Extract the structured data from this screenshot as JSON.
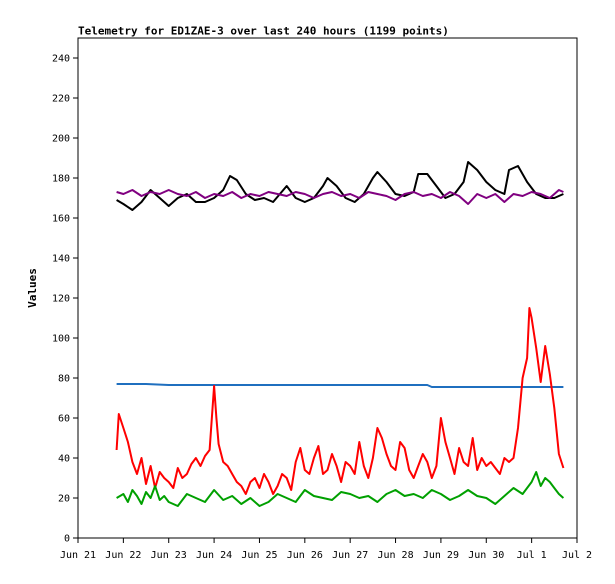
{
  "chart_data": {
    "type": "line",
    "title": "Telemetry for ED1ZAE-3 over last 240 hours (1199 points)",
    "xlabel": "",
    "ylabel": "Values",
    "ylim": [
      0,
      250
    ],
    "yticks": [
      0,
      20,
      40,
      60,
      80,
      100,
      120,
      140,
      160,
      180,
      200,
      220,
      240
    ],
    "xlim": [
      0,
      11
    ],
    "xticks": [
      {
        "x": 0,
        "label": "Jun 21"
      },
      {
        "x": 1,
        "label": "Jun 22"
      },
      {
        "x": 2,
        "label": "Jun 23"
      },
      {
        "x": 3,
        "label": "Jun 24"
      },
      {
        "x": 4,
        "label": "Jun 25"
      },
      {
        "x": 5,
        "label": "Jun 26"
      },
      {
        "x": 6,
        "label": "Jun 27"
      },
      {
        "x": 7,
        "label": "Jun 28"
      },
      {
        "x": 8,
        "label": "Jun 29"
      },
      {
        "x": 9,
        "label": "Jun 30"
      },
      {
        "x": 10,
        "label": "Jul 1"
      },
      {
        "x": 11,
        "label": "Jul 2"
      }
    ],
    "grid": false,
    "legend": "none",
    "series": [
      {
        "color": "#000000",
        "x": [
          0.85,
          1.0,
          1.2,
          1.4,
          1.6,
          1.8,
          2.0,
          2.2,
          2.4,
          2.6,
          2.8,
          3.0,
          3.2,
          3.35,
          3.5,
          3.7,
          3.9,
          4.1,
          4.3,
          4.45,
          4.6,
          4.8,
          5.0,
          5.2,
          5.4,
          5.5,
          5.7,
          5.9,
          6.1,
          6.3,
          6.5,
          6.6,
          6.8,
          7.0,
          7.2,
          7.4,
          7.5,
          7.7,
          7.9,
          8.1,
          8.3,
          8.5,
          8.6,
          8.8,
          9.0,
          9.2,
          9.4,
          9.5,
          9.7,
          9.9,
          10.1,
          10.3,
          10.5,
          10.7
        ],
        "y": [
          169,
          167,
          164,
          168,
          174,
          170,
          166,
          170,
          172,
          168,
          168,
          170,
          174,
          181,
          179,
          172,
          169,
          170,
          168,
          172,
          176,
          170,
          168,
          170,
          176,
          180,
          176,
          170,
          168,
          172,
          180,
          183,
          178,
          172,
          171,
          173,
          182,
          182,
          176,
          170,
          172,
          178,
          188,
          184,
          178,
          174,
          172,
          184,
          186,
          178,
          172,
          170,
          170,
          172
        ]
      },
      {
        "color": "#800080",
        "x": [
          0.85,
          1.0,
          1.2,
          1.4,
          1.6,
          1.8,
          2.0,
          2.2,
          2.4,
          2.6,
          2.8,
          3.0,
          3.2,
          3.4,
          3.6,
          3.8,
          4.0,
          4.2,
          4.4,
          4.6,
          4.8,
          5.0,
          5.2,
          5.4,
          5.6,
          5.8,
          6.0,
          6.2,
          6.4,
          6.6,
          6.8,
          7.0,
          7.2,
          7.4,
          7.6,
          7.8,
          8.0,
          8.2,
          8.4,
          8.6,
          8.8,
          9.0,
          9.2,
          9.4,
          9.6,
          9.8,
          10.0,
          10.2,
          10.4,
          10.6,
          10.7
        ],
        "y": [
          173,
          172,
          174,
          171,
          173,
          172,
          174,
          172,
          171,
          173,
          170,
          172,
          171,
          173,
          170,
          172,
          171,
          173,
          172,
          171,
          173,
          172,
          170,
          172,
          173,
          171,
          172,
          170,
          173,
          172,
          171,
          169,
          172,
          173,
          171,
          172,
          170,
          173,
          171,
          167,
          172,
          170,
          172,
          168,
          172,
          171,
          173,
          172,
          170,
          174,
          173
        ]
      },
      {
        "color": "#1f6fbf",
        "x": [
          0.85,
          1.5,
          2.0,
          3.0,
          4.0,
          5.0,
          6.0,
          7.0,
          7.7,
          7.8,
          8.5,
          9.0,
          9.5,
          10.0,
          10.7
        ],
        "y": [
          77,
          77,
          76.5,
          76.5,
          76.5,
          76.5,
          76.5,
          76.5,
          76.5,
          75.5,
          75.5,
          75.5,
          75.5,
          75.5,
          75.5
        ]
      },
      {
        "color": "#ff0000",
        "x": [
          0.85,
          0.9,
          1.0,
          1.1,
          1.2,
          1.3,
          1.4,
          1.5,
          1.6,
          1.7,
          1.8,
          1.9,
          2.0,
          2.1,
          2.2,
          2.3,
          2.4,
          2.5,
          2.6,
          2.7,
          2.8,
          2.9,
          3.0,
          3.05,
          3.1,
          3.2,
          3.3,
          3.4,
          3.5,
          3.6,
          3.7,
          3.8,
          3.9,
          4.0,
          4.1,
          4.2,
          4.3,
          4.4,
          4.5,
          4.6,
          4.7,
          4.8,
          4.9,
          5.0,
          5.1,
          5.2,
          5.3,
          5.4,
          5.5,
          5.6,
          5.7,
          5.8,
          5.9,
          6.0,
          6.1,
          6.2,
          6.3,
          6.4,
          6.5,
          6.6,
          6.7,
          6.8,
          6.9,
          7.0,
          7.1,
          7.2,
          7.3,
          7.4,
          7.5,
          7.6,
          7.7,
          7.8,
          7.9,
          8.0,
          8.1,
          8.2,
          8.3,
          8.4,
          8.5,
          8.6,
          8.7,
          8.8,
          8.9,
          9.0,
          9.1,
          9.2,
          9.3,
          9.4,
          9.5,
          9.6,
          9.7,
          9.8,
          9.9,
          9.95,
          10.0,
          10.1,
          10.2,
          10.3,
          10.4,
          10.5,
          10.6,
          10.7
        ],
        "y": [
          44,
          62,
          55,
          48,
          38,
          32,
          40,
          27,
          36,
          25,
          33,
          30,
          28,
          25,
          35,
          30,
          32,
          37,
          40,
          36,
          41,
          44,
          76,
          60,
          47,
          38,
          36,
          32,
          28,
          26,
          22,
          28,
          30,
          25,
          32,
          28,
          22,
          26,
          32,
          30,
          24,
          38,
          45,
          34,
          32,
          40,
          46,
          32,
          34,
          42,
          36,
          28,
          38,
          36,
          32,
          48,
          36,
          30,
          40,
          55,
          50,
          42,
          36,
          34,
          48,
          45,
          34,
          30,
          36,
          42,
          38,
          30,
          36,
          60,
          48,
          40,
          32,
          45,
          38,
          36,
          50,
          34,
          40,
          36,
          38,
          35,
          32,
          40,
          38,
          40,
          55,
          80,
          90,
          115,
          110,
          95,
          78,
          96,
          82,
          65,
          42,
          35
        ]
      },
      {
        "color": "#00a000",
        "x": [
          0.85,
          1.0,
          1.1,
          1.2,
          1.3,
          1.4,
          1.5,
          1.6,
          1.7,
          1.8,
          1.9,
          2.0,
          2.2,
          2.4,
          2.6,
          2.8,
          3.0,
          3.2,
          3.4,
          3.6,
          3.8,
          4.0,
          4.2,
          4.4,
          4.6,
          4.8,
          5.0,
          5.2,
          5.4,
          5.6,
          5.8,
          6.0,
          6.2,
          6.4,
          6.6,
          6.8,
          7.0,
          7.2,
          7.4,
          7.6,
          7.8,
          8.0,
          8.2,
          8.4,
          8.6,
          8.8,
          9.0,
          9.2,
          9.4,
          9.6,
          9.8,
          10.0,
          10.1,
          10.2,
          10.3,
          10.4,
          10.5,
          10.6,
          10.7
        ],
        "y": [
          20,
          22,
          18,
          24,
          21,
          17,
          23,
          20,
          26,
          19,
          21,
          18,
          16,
          22,
          20,
          18,
          24,
          19,
          21,
          17,
          20,
          16,
          18,
          22,
          20,
          18,
          24,
          21,
          20,
          19,
          23,
          22,
          20,
          21,
          18,
          22,
          24,
          21,
          22,
          20,
          24,
          22,
          19,
          21,
          24,
          21,
          20,
          17,
          21,
          25,
          22,
          28,
          33,
          26,
          30,
          28,
          25,
          22,
          20
        ]
      }
    ]
  }
}
